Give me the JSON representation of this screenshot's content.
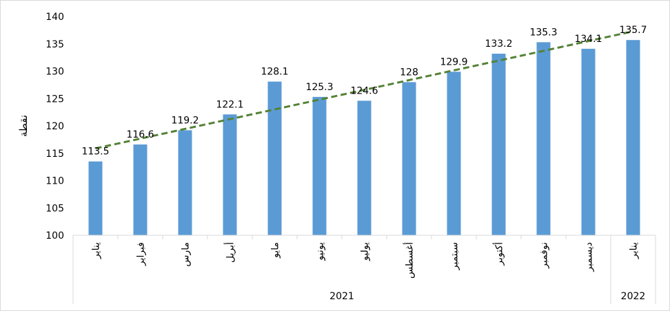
{
  "chart_data": {
    "type": "bar",
    "ylabel": "نقطة",
    "ylim": [
      100,
      140
    ],
    "yticks": [
      100,
      105,
      110,
      115,
      120,
      125,
      130,
      135,
      140
    ],
    "grid": false,
    "legend": "none",
    "categories": [
      "يناير",
      "فبراير",
      "مارس",
      "أبريل",
      "مايو",
      "يونيو",
      "يوليو",
      "أغسطس",
      "سبتمبر",
      "أكتوبر",
      "نوفمبر",
      "ديسمبر",
      "يناير"
    ],
    "values": [
      113.5,
      116.6,
      119.2,
      122.1,
      128.1,
      125.3,
      124.6,
      128,
      129.9,
      133.2,
      135.3,
      134.1,
      135.7
    ],
    "data_labels": [
      "113.5",
      "116.6",
      "119.2",
      "122.1",
      "128.1",
      "125.3",
      "124.6",
      "128",
      "129.9",
      "133.2",
      "135.3",
      "134.1",
      "135.7"
    ],
    "groups": [
      {
        "label": "2021",
        "count": 12
      },
      {
        "label": "2022",
        "count": 1
      }
    ],
    "trendline": {
      "type": "linear",
      "style": "dashed"
    },
    "colors": {
      "bar": "#5b9bd5",
      "trend": "#548235",
      "axis": "#d9d9d9"
    }
  }
}
